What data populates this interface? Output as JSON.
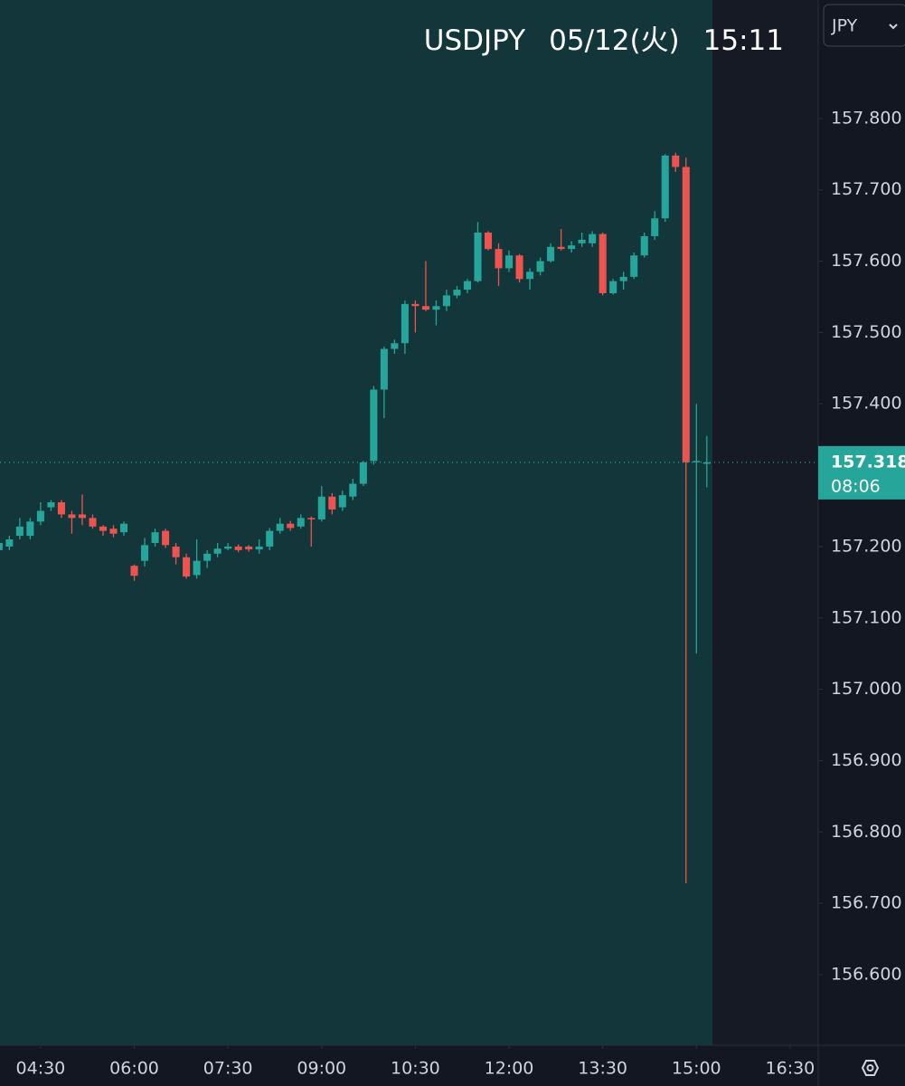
{
  "chart_data": {
    "type": "candlestick",
    "symbol": "USDJPY",
    "date": "05/12(火)",
    "time": "15:11",
    "currency": "JPY",
    "up_color": "#26a69a",
    "down_color": "#ef5350",
    "price_line": 157.318,
    "countdown": "08:06",
    "xlim": [
      "03:51",
      "16:57"
    ],
    "xticks": [
      "04:30",
      "06:00",
      "07:30",
      "09:00",
      "10:30",
      "12:00",
      "13:30",
      "15:00",
      "16:30"
    ],
    "ylim": [
      156.501,
      157.966
    ],
    "yticks": [
      {
        "value": 156.6,
        "label": "156.600"
      },
      {
        "value": 156.7,
        "label": "156.700"
      },
      {
        "value": 156.8,
        "label": "156.800"
      },
      {
        "value": 156.9,
        "label": "156.900"
      },
      {
        "value": 157.0,
        "label": "157.000"
      },
      {
        "value": 157.1,
        "label": "157.100"
      },
      {
        "value": 157.2,
        "label": "157.200"
      },
      {
        "value": 157.3,
        "label": "157.300"
      },
      {
        "value": 157.4,
        "label": "157.400"
      },
      {
        "value": 157.5,
        "label": "157.500"
      },
      {
        "value": 157.6,
        "label": "157.600"
      },
      {
        "value": 157.7,
        "label": "157.700"
      },
      {
        "value": 157.8,
        "label": "157.800"
      }
    ],
    "x": [
      "03:50",
      "04:00",
      "04:10",
      "04:20",
      "04:30",
      "04:40",
      "04:50",
      "05:00",
      "05:10",
      "05:20",
      "05:30",
      "05:40",
      "05:50",
      "06:00",
      "06:10",
      "06:20",
      "06:30",
      "06:40",
      "06:50",
      "07:00",
      "07:10",
      "07:20",
      "07:30",
      "07:40",
      "07:50",
      "08:00",
      "08:10",
      "08:20",
      "08:30",
      "08:40",
      "08:50",
      "09:00",
      "09:10",
      "09:20",
      "09:30",
      "09:40",
      "09:50",
      "10:00",
      "10:10",
      "10:20",
      "10:30",
      "10:40",
      "10:50",
      "11:00",
      "11:10",
      "11:20",
      "11:30",
      "11:40",
      "11:50",
      "12:00",
      "12:10",
      "12:20",
      "12:30",
      "12:40",
      "12:50",
      "13:00",
      "13:10",
      "13:20",
      "13:30",
      "13:40",
      "13:50",
      "14:00",
      "14:10",
      "14:20",
      "14:30",
      "14:40",
      "14:50",
      "15:00",
      "15:10"
    ],
    "open": [
      157.195,
      157.2,
      157.215,
      157.215,
      157.235,
      157.255,
      157.262,
      157.245,
      157.245,
      157.24,
      157.228,
      157.225,
      157.22,
      157.173,
      157.18,
      157.205,
      157.222,
      157.2,
      157.185,
      157.16,
      157.18,
      157.19,
      157.197,
      157.2,
      157.2,
      157.196,
      157.2,
      157.222,
      157.232,
      157.228,
      157.24,
      157.238,
      157.27,
      157.255,
      157.27,
      157.288,
      157.32,
      157.42,
      157.477,
      157.485,
      157.54,
      157.537,
      157.532,
      157.537,
      157.552,
      157.56,
      157.572,
      157.64,
      157.617,
      157.59,
      157.608,
      157.575,
      157.585,
      157.6,
      157.62,
      157.617,
      157.625,
      157.625,
      157.638,
      157.555,
      157.572,
      157.578,
      157.608,
      157.635,
      157.66,
      157.748,
      157.732,
      157.318,
      157.316
    ],
    "high": [
      157.21,
      157.215,
      157.24,
      157.24,
      157.262,
      157.265,
      157.265,
      157.25,
      157.273,
      157.245,
      157.23,
      157.23,
      157.235,
      157.175,
      157.212,
      157.225,
      157.225,
      157.205,
      157.19,
      157.21,
      157.195,
      157.205,
      157.205,
      157.203,
      157.202,
      157.21,
      157.226,
      157.24,
      157.236,
      157.245,
      157.242,
      157.285,
      157.275,
      157.278,
      157.295,
      157.32,
      157.425,
      157.48,
      157.49,
      157.545,
      157.545,
      157.6,
      157.545,
      157.56,
      157.565,
      157.575,
      157.655,
      157.642,
      157.625,
      157.615,
      157.61,
      157.59,
      157.605,
      157.625,
      157.645,
      157.628,
      157.64,
      157.642,
      157.64,
      157.575,
      157.585,
      157.612,
      157.64,
      157.67,
      157.75,
      157.752,
      157.745,
      157.4,
      157.355
    ],
    "low": [
      157.19,
      157.195,
      157.21,
      157.21,
      157.23,
      157.25,
      157.24,
      157.218,
      157.23,
      157.225,
      157.215,
      157.213,
      157.215,
      157.152,
      157.172,
      157.2,
      157.198,
      157.175,
      157.155,
      157.155,
      157.17,
      157.185,
      157.195,
      157.192,
      157.193,
      157.19,
      157.195,
      157.218,
      157.222,
      157.225,
      157.2,
      157.235,
      157.245,
      157.25,
      157.265,
      157.285,
      157.315,
      157.38,
      157.47,
      157.47,
      157.5,
      157.53,
      157.51,
      157.53,
      157.548,
      157.555,
      157.57,
      157.615,
      157.565,
      157.585,
      157.57,
      157.56,
      157.58,
      157.598,
      157.615,
      157.612,
      157.62,
      157.62,
      157.552,
      157.553,
      157.56,
      157.575,
      157.605,
      157.63,
      157.655,
      157.725,
      156.728,
      157.05,
      157.283
    ],
    "close": [
      157.205,
      157.21,
      157.228,
      157.235,
      157.25,
      157.262,
      157.245,
      157.24,
      157.24,
      157.228,
      157.222,
      157.218,
      157.232,
      157.159,
      157.202,
      157.22,
      157.202,
      157.185,
      157.158,
      157.18,
      157.19,
      157.197,
      157.2,
      157.195,
      157.196,
      157.2,
      157.222,
      157.232,
      157.226,
      157.24,
      157.238,
      157.27,
      157.252,
      157.272,
      157.288,
      157.318,
      157.42,
      157.477,
      157.485,
      157.54,
      157.537,
      157.532,
      157.537,
      157.552,
      157.56,
      157.572,
      157.64,
      157.617,
      157.59,
      157.608,
      157.575,
      157.585,
      157.6,
      157.62,
      157.617,
      157.622,
      157.63,
      157.638,
      157.555,
      157.572,
      157.578,
      157.608,
      157.635,
      157.66,
      157.748,
      157.732,
      157.318,
      157.32,
      157.318
    ]
  }
}
